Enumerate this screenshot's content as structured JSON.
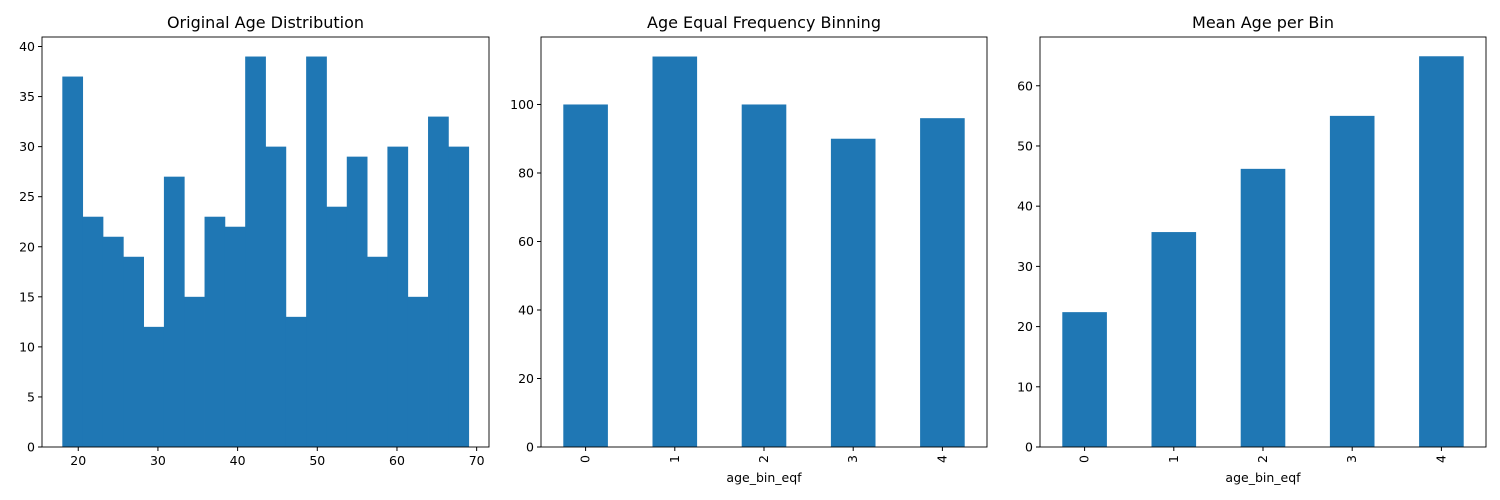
{
  "chart_data": [
    {
      "type": "bar",
      "subtype": "histogram",
      "title": "Original Age Distribution",
      "xlabel": "",
      "ylabel": "",
      "bin_edges": [
        18,
        20.55,
        23.1,
        25.65,
        28.2,
        30.75,
        33.3,
        35.85,
        38.4,
        40.95,
        43.5,
        46.05,
        48.6,
        51.15,
        53.7,
        56.25,
        58.8,
        61.35,
        63.9,
        66.45,
        69
      ],
      "values": [
        37,
        23,
        21,
        19,
        12,
        27,
        15,
        23,
        22,
        39,
        30,
        13,
        39,
        24,
        29,
        19,
        30,
        15,
        33,
        30
      ],
      "xlim": [
        15.45,
        71.55
      ],
      "ylim": [
        0,
        40.95
      ],
      "xticks": [
        "20",
        "30",
        "40",
        "50",
        "60",
        "70"
      ],
      "yticks": [
        "0",
        "5",
        "10",
        "15",
        "20",
        "25",
        "30",
        "35",
        "40"
      ],
      "color": "#1f77b4",
      "grid": false
    },
    {
      "type": "bar",
      "title": "Age Equal Frequency Binning",
      "xlabel": "age_bin_eqf",
      "ylabel": "",
      "categories": [
        "0",
        "1",
        "2",
        "3",
        "4"
      ],
      "values": [
        100,
        114,
        100,
        90,
        96
      ],
      "ylim": [
        0,
        119.7
      ],
      "yticks": [
        "0",
        "20",
        "40",
        "60",
        "80",
        "100"
      ],
      "color": "#1f77b4",
      "grid": false
    },
    {
      "type": "bar",
      "title": "Mean Age per Bin",
      "xlabel": "age_bin_eqf",
      "ylabel": "",
      "categories": [
        "0",
        "1",
        "2",
        "3",
        "4"
      ],
      "values": [
        22.4,
        35.7,
        46.2,
        55.0,
        64.9
      ],
      "ylim": [
        0,
        68.1
      ],
      "yticks": [
        "0",
        "10",
        "20",
        "30",
        "40",
        "50",
        "60"
      ],
      "color": "#1f77b4",
      "grid": false
    }
  ]
}
